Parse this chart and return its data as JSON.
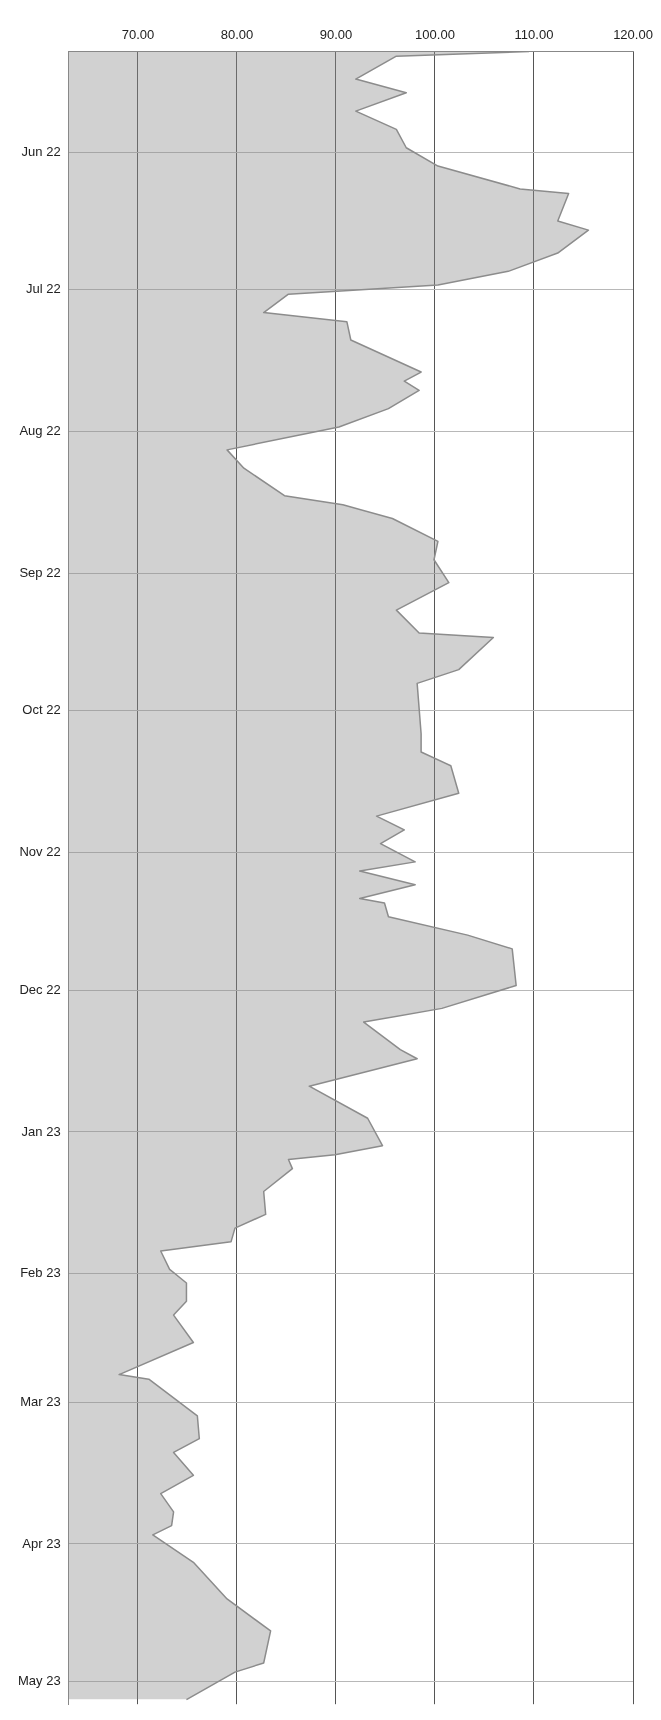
{
  "chart_data": {
    "type": "area",
    "orientation": "horizontal",
    "grid": true,
    "line_style": "solid",
    "x": [
      "2022-05-10",
      "2022-05-11",
      "2022-05-16",
      "2022-05-19",
      "2022-05-23",
      "2022-05-27",
      "2022-05-31",
      "2022-06-04",
      "2022-06-09",
      "2022-06-10",
      "2022-06-16",
      "2022-06-18",
      "2022-06-23",
      "2022-06-27",
      "2022-06-30",
      "2022-07-02",
      "2022-07-06",
      "2022-07-08",
      "2022-07-12",
      "2022-07-19",
      "2022-07-21",
      "2022-07-23",
      "2022-07-27",
      "2022-07-31",
      "2022-08-05",
      "2022-08-09",
      "2022-08-15",
      "2022-08-17",
      "2022-08-20",
      "2022-08-25",
      "2022-08-29",
      "2022-09-03",
      "2022-09-09",
      "2022-09-14",
      "2022-09-15",
      "2022-09-22",
      "2022-09-25",
      "2022-10-06",
      "2022-10-10",
      "2022-10-13",
      "2022-10-19",
      "2022-10-24",
      "2022-10-27",
      "2022-10-30",
      "2022-11-03",
      "2022-11-05",
      "2022-11-08",
      "2022-11-11",
      "2022-11-12",
      "2022-11-15",
      "2022-11-19",
      "2022-11-22",
      "2022-11-30",
      "2022-12-05",
      "2022-12-08",
      "2022-12-14",
      "2022-12-16",
      "2022-12-22",
      "2022-12-29",
      "2023-01-04",
      "2023-01-06",
      "2023-01-07",
      "2023-01-09",
      "2023-01-14",
      "2023-01-19",
      "2023-01-22",
      "2023-01-25",
      "2023-01-27",
      "2023-01-31",
      "2023-02-03",
      "2023-02-07",
      "2023-02-10",
      "2023-02-16",
      "2023-02-23",
      "2023-02-24",
      "2023-03-04",
      "2023-03-09",
      "2023-03-12",
      "2023-03-17",
      "2023-03-21",
      "2023-03-25",
      "2023-03-28",
      "2023-03-30",
      "2023-04-05",
      "2023-04-13",
      "2023-04-20",
      "2023-04-27",
      "2023-04-29",
      "2023-05-05"
    ],
    "series": [
      {
        "color": "#8c8c8c",
        "values": [
          109.5,
          96.1,
          92.0,
          97.1,
          92.0,
          96.1,
          97.1,
          100.3,
          108.6,
          113.5,
          112.4,
          115.5,
          112.4,
          107.4,
          100.3,
          85.2,
          82.7,
          91.1,
          91.5,
          98.6,
          96.9,
          98.4,
          95.3,
          90.3,
          79.0,
          80.7,
          84.8,
          90.7,
          95.7,
          100.3,
          99.9,
          101.4,
          96.1,
          98.4,
          105.9,
          102.4,
          98.2,
          98.6,
          98.6,
          101.6,
          102.4,
          94.1,
          96.9,
          94.5,
          98.0,
          92.4,
          98.0,
          92.4,
          94.9,
          95.3,
          103.3,
          107.8,
          108.2,
          100.7,
          92.8,
          96.5,
          98.2,
          87.3,
          93.2,
          94.7,
          89.9,
          85.2,
          85.6,
          82.7,
          82.9,
          79.8,
          79.4,
          72.3,
          73.2,
          74.9,
          74.9,
          73.6,
          75.6,
          68.1,
          71.1,
          76.0,
          76.2,
          73.6,
          75.6,
          72.3,
          73.6,
          73.4,
          71.5,
          75.6,
          79.0,
          83.4,
          82.7,
          79.8,
          74.9
        ]
      }
    ],
    "xlim": [
      63,
      120
    ],
    "xticks": [
      {
        "value": 70,
        "label": "70.00"
      },
      {
        "value": 80,
        "label": "80.00"
      },
      {
        "value": 90,
        "label": "90.00"
      },
      {
        "value": 100,
        "label": "100.00"
      },
      {
        "value": 110,
        "label": "110.00"
      },
      {
        "value": 120,
        "label": "120.00"
      }
    ],
    "ylim": [
      "2023-05-06",
      "2022-05-10"
    ],
    "yticks": [
      {
        "value": "2022-06-01",
        "label": "Jun 22"
      },
      {
        "value": "2022-07-01",
        "label": "Jul 22"
      },
      {
        "value": "2022-08-01",
        "label": "Aug 22"
      },
      {
        "value": "2022-09-01",
        "label": "Sep 22"
      },
      {
        "value": "2022-10-01",
        "label": "Oct 22"
      },
      {
        "value": "2022-11-01",
        "label": "Nov 22"
      },
      {
        "value": "2022-12-01",
        "label": "Dec 22"
      },
      {
        "value": "2023-01-01",
        "label": "Jan 23"
      },
      {
        "value": "2023-02-01",
        "label": "Feb 23"
      },
      {
        "value": "2023-03-01",
        "label": "Mar 23"
      },
      {
        "value": "2023-04-01",
        "label": "Apr 23"
      },
      {
        "value": "2023-05-01",
        "label": "May 23"
      }
    ]
  }
}
